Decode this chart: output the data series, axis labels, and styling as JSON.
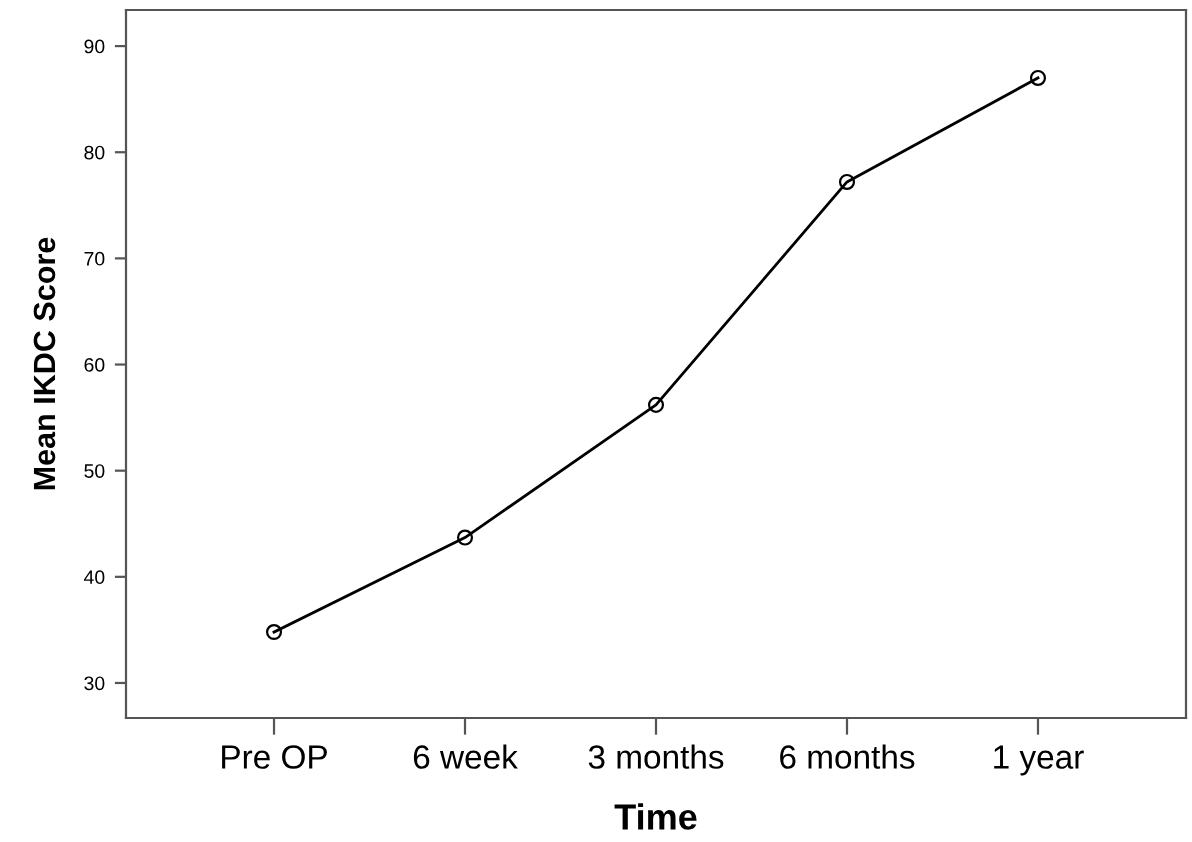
{
  "chart_data": {
    "type": "line",
    "xlabel": "Time",
    "ylabel": "Mean IKDC Score",
    "categories": [
      "Pre OP",
      "6 week",
      "3 months",
      "6 months",
      "1 year"
    ],
    "series": [
      {
        "color": "#000000",
        "values": [
          34.8,
          43.7,
          56.2,
          77.2,
          87.0
        ]
      }
    ],
    "ylim": [
      26.7,
      93.4
    ],
    "yticks": [
      30,
      40,
      50,
      60,
      70,
      80,
      90
    ],
    "marker": "circle",
    "line_style": "solid"
  }
}
